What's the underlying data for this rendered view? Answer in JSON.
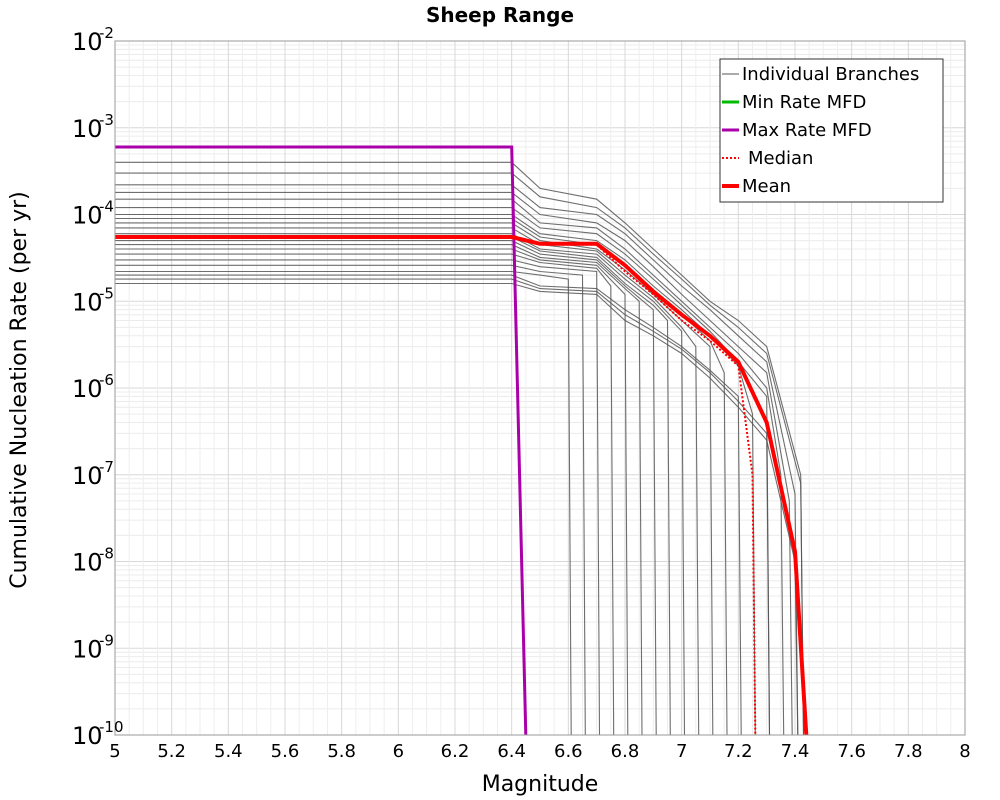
{
  "chart_data": {
    "type": "line",
    "title": "Sheep Range",
    "xlabel": "Magnitude",
    "ylabel": "Cumulative Nucleation Rate (per yr)",
    "xlim": [
      5,
      8
    ],
    "ylim": [
      1e-10,
      0.01
    ],
    "y_scale": "log",
    "grid": true,
    "legend_position": "top-right",
    "x_ticks": [
      "5",
      "5.2",
      "5.4",
      "5.6",
      "5.8",
      "6",
      "6.2",
      "6.4",
      "6.6",
      "6.8",
      "7",
      "7.2",
      "7.4",
      "7.6",
      "7.8",
      "8"
    ],
    "y_ticks": [
      {
        "base": "10",
        "exp": "-2",
        "value": 0.01
      },
      {
        "base": "10",
        "exp": "-3",
        "value": 0.001
      },
      {
        "base": "10",
        "exp": "-4",
        "value": 0.0001
      },
      {
        "base": "10",
        "exp": "-5",
        "value": 1e-05
      },
      {
        "base": "10",
        "exp": "-6",
        "value": 1e-06
      },
      {
        "base": "10",
        "exp": "-7",
        "value": 1e-07
      },
      {
        "base": "10",
        "exp": "-8",
        "value": 1e-08
      },
      {
        "base": "10",
        "exp": "-9",
        "value": 1e-09
      },
      {
        "base": "10",
        "exp": "-10",
        "value": 1e-10
      }
    ],
    "series": [
      {
        "name": "Individual Branches",
        "color": "#555555",
        "style": "thin",
        "description_values": "many branch curves, each flat between 1.5e-5 and 4e-4 up to ~6.4-6.7, then falling with cutoffs between 6.65 and 7.45",
        "branches": [
          {
            "x": [
              5,
              6.4,
              6.5,
              6.7,
              6.8,
              6.9,
              7.0,
              7.1,
              7.2,
              7.3,
              7.42,
              7.43
            ],
            "y": [
              0.0004,
              0.0004,
              0.0002,
              0.00015,
              8e-05,
              4e-05,
              2e-05,
              1e-05,
              6e-06,
              3e-06,
              1e-07,
              1e-10
            ]
          },
          {
            "x": [
              5,
              6.4,
              6.5,
              6.7,
              6.8,
              6.9,
              7.0,
              7.1,
              7.2,
              7.3,
              7.42,
              7.43
            ],
            "y": [
              0.0003,
              0.0003,
              0.00016,
              0.00012,
              7e-05,
              3.5e-05,
              1.8e-05,
              9e-06,
              5e-06,
              2.5e-06,
              8e-08,
              1e-10
            ]
          },
          {
            "x": [
              5,
              6.4,
              6.5,
              6.7,
              6.8,
              6.9,
              7.0,
              7.1,
              7.2,
              7.3,
              7.4,
              7.41
            ],
            "y": [
              0.00022,
              0.00022,
              0.00012,
              0.0001,
              6e-05,
              3e-05,
              1.5e-05,
              8e-06,
              4e-06,
              2e-06,
              6e-08,
              1e-10
            ]
          },
          {
            "x": [
              5,
              6.4,
              6.5,
              6.7,
              6.8,
              6.9,
              7.0,
              7.1,
              7.2,
              7.3,
              7.38,
              7.39
            ],
            "y": [
              0.00018,
              0.00018,
              0.0001,
              8e-05,
              5e-05,
              2.5e-05,
              1.2e-05,
              6e-06,
              3e-06,
              1.5e-06,
              5e-08,
              1e-10
            ]
          },
          {
            "x": [
              5,
              6.4,
              6.5,
              6.7,
              6.8,
              6.9,
              7.0,
              7.1,
              7.2,
              7.3,
              7.35,
              7.36
            ],
            "y": [
              0.00015,
              0.00015,
              8e-05,
              7e-05,
              4e-05,
              2e-05,
              1e-05,
              5e-06,
              2.5e-06,
              1e-06,
              1e-07,
              1e-10
            ]
          },
          {
            "x": [
              5,
              6.4,
              6.5,
              6.7,
              6.8,
              6.9,
              7.0,
              7.1,
              7.2,
              7.3,
              7.31
            ],
            "y": [
              0.00012,
              0.00012,
              7e-05,
              6e-05,
              3.5e-05,
              1.8e-05,
              9e-06,
              4.5e-06,
              2e-06,
              8e-07,
              1e-10
            ]
          },
          {
            "x": [
              5,
              6.4,
              6.5,
              6.7,
              6.8,
              6.9,
              7.0,
              7.1,
              7.2,
              7.25,
              7.26
            ],
            "y": [
              0.0001,
              0.0001,
              6e-05,
              5e-05,
              3e-05,
              1.5e-05,
              8e-06,
              4e-06,
              1.8e-06,
              5e-07,
              1e-10
            ]
          },
          {
            "x": [
              5,
              6.4,
              6.5,
              6.7,
              6.8,
              6.9,
              7.0,
              7.1,
              7.15,
              7.16
            ],
            "y": [
              9e-05,
              9e-05,
              5.5e-05,
              4.5e-05,
              2.6e-05,
              1.3e-05,
              7e-06,
              3.5e-06,
              1.5e-06,
              1e-10
            ]
          },
          {
            "x": [
              5,
              6.4,
              6.5,
              6.7,
              6.8,
              6.9,
              7.0,
              7.1,
              7.11
            ],
            "y": [
              8e-05,
              8e-05,
              5e-05,
              4e-05,
              2.3e-05,
              1.2e-05,
              6e-06,
              3e-06,
              1e-10
            ]
          },
          {
            "x": [
              5,
              6.4,
              6.5,
              6.7,
              6.8,
              6.9,
              7.0,
              7.05,
              7.06
            ],
            "y": [
              7e-05,
              7e-05,
              4.5e-05,
              3.8e-05,
              2e-05,
              1.1e-05,
              5e-06,
              3e-06,
              1e-10
            ]
          },
          {
            "x": [
              5,
              6.4,
              6.5,
              6.7,
              6.8,
              6.9,
              7.0,
              7.01
            ],
            "y": [
              6e-05,
              6e-05,
              4e-05,
              3.5e-05,
              1.8e-05,
              1e-05,
              4.5e-06,
              1e-10
            ]
          },
          {
            "x": [
              5,
              6.4,
              6.5,
              6.7,
              6.8,
              6.9,
              6.95,
              6.96
            ],
            "y": [
              5.5e-05,
              5.5e-05,
              3.8e-05,
              3.2e-05,
              1.6e-05,
              9e-06,
              6e-06,
              1e-10
            ]
          },
          {
            "x": [
              5,
              6.4,
              6.5,
              6.7,
              6.8,
              6.9,
              6.91
            ],
            "y": [
              5e-05,
              5e-05,
              3.5e-05,
              3e-05,
              1.5e-05,
              8e-06,
              1e-10
            ]
          },
          {
            "x": [
              5,
              6.4,
              6.5,
              6.7,
              6.8,
              6.85,
              6.86
            ],
            "y": [
              4.5e-05,
              4.5e-05,
              3.2e-05,
              2.8e-05,
              1.4e-05,
              1e-05,
              1e-10
            ]
          },
          {
            "x": [
              5,
              6.4,
              6.5,
              6.7,
              6.8,
              6.81
            ],
            "y": [
              4e-05,
              4e-05,
              3e-05,
              2.6e-05,
              1.2e-05,
              1e-10
            ]
          },
          {
            "x": [
              5,
              6.4,
              6.5,
              6.7,
              6.75,
              6.76
            ],
            "y": [
              3.5e-05,
              3.5e-05,
              2.8e-05,
              2.4e-05,
              1.5e-05,
              1e-10
            ]
          },
          {
            "x": [
              5,
              6.4,
              6.5,
              6.7,
              6.71
            ],
            "y": [
              3e-05,
              3e-05,
              2.5e-05,
              2.2e-05,
              1e-10
            ]
          },
          {
            "x": [
              5,
              6.4,
              6.5,
              6.65,
              6.66
            ],
            "y": [
              2.6e-05,
              2.6e-05,
              2.2e-05,
              2e-05,
              1e-10
            ]
          },
          {
            "x": [
              5,
              6.4,
              6.5,
              6.6,
              6.61
            ],
            "y": [
              2.2e-05,
              2.2e-05,
              2e-05,
              1.8e-05,
              1e-10
            ]
          },
          {
            "x": [
              5,
              6.4,
              6.5,
              6.7,
              6.8,
              6.9,
              7.0,
              7.1,
              7.2,
              7.21
            ],
            "y": [
              2e-05,
              2e-05,
              1.5e-05,
              1.4e-05,
              8e-06,
              5e-06,
              3e-06,
              1.6e-06,
              8e-07,
              1e-10
            ]
          },
          {
            "x": [
              5,
              6.4,
              6.5,
              6.7,
              6.8,
              6.9,
              7.0,
              7.1,
              7.2,
              7.3,
              7.31
            ],
            "y": [
              1.8e-05,
              1.8e-05,
              1.4e-05,
              1.3e-05,
              7e-06,
              4.5e-06,
              2.8e-06,
              1.5e-06,
              7e-07,
              3e-07,
              1e-10
            ]
          },
          {
            "x": [
              5,
              6.4,
              6.5,
              6.7,
              6.8,
              6.9,
              7.0,
              7.1,
              7.2,
              7.3,
              7.4,
              7.41
            ],
            "y": [
              1.6e-05,
              1.6e-05,
              1.3e-05,
              1.2e-05,
              6e-06,
              4e-06,
              2.5e-06,
              1.3e-06,
              6e-07,
              2.5e-07,
              1e-08,
              1e-10
            ]
          }
        ]
      },
      {
        "name": "Min Rate MFD",
        "color": "#00bb00",
        "x": [],
        "y": []
      },
      {
        "name": "Max Rate MFD",
        "color": "#aa00aa",
        "x": [
          5,
          6.4,
          6.45
        ],
        "y": [
          0.0006,
          0.0006,
          1e-10
        ]
      },
      {
        "name": "Median",
        "color": "#ff0000",
        "style": "dotted",
        "x": [
          5,
          6.4,
          6.5,
          6.7,
          6.8,
          6.9,
          7.0,
          7.1,
          7.2,
          7.25,
          7.26
        ],
        "y": [
          5.5e-05,
          5.5e-05,
          4.5e-05,
          4.5e-05,
          2.2e-05,
          1.2e-05,
          6e-06,
          3.5e-06,
          1.8e-06,
          1e-07,
          1e-10
        ]
      },
      {
        "name": "Mean",
        "color": "#ff0000",
        "style": "thick",
        "x": [
          5,
          6.4,
          6.5,
          6.7,
          6.8,
          6.9,
          7.0,
          7.1,
          7.2,
          7.3,
          7.4,
          7.44
        ],
        "y": [
          5.5e-05,
          5.5e-05,
          4.6e-05,
          4.6e-05,
          2.6e-05,
          1.3e-05,
          7e-06,
          4e-06,
          2e-06,
          4e-07,
          1.3e-08,
          1e-10
        ]
      }
    ],
    "legend": [
      "Individual Branches",
      "Min Rate MFD",
      "Max Rate MFD",
      "Median",
      "Mean"
    ]
  }
}
